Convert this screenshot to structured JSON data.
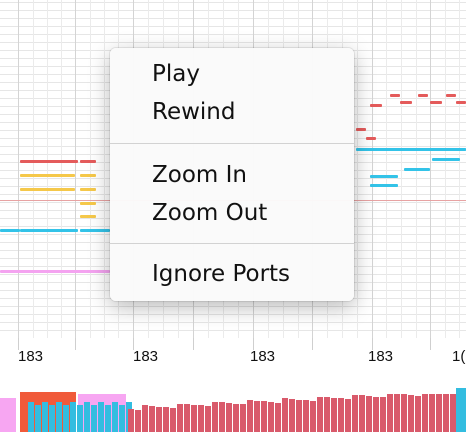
{
  "context_menu": {
    "items": [
      {
        "label": "Play"
      },
      {
        "label": "Rewind"
      },
      {
        "label": "Zoom In"
      },
      {
        "label": "Zoom Out"
      },
      {
        "label": "Ignore Ports"
      }
    ]
  },
  "ruler": {
    "labels": [
      "183",
      "183",
      "183",
      "183",
      "1("
    ]
  },
  "colors": {
    "red": "#e45b5b",
    "yellow": "#f5c84a",
    "cyan": "#33c3e8",
    "pink": "#f4a3f0",
    "velocity_red": "#d95a6b",
    "velocity_cyan": "#33bde0",
    "velocity_pink": "#f7a6f2",
    "velocity_orange": "#f05a3a"
  }
}
